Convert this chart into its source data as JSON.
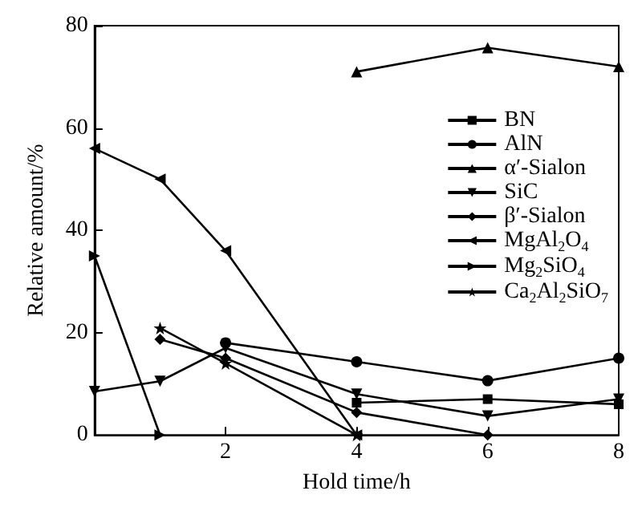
{
  "chart_data": {
    "type": "line",
    "xlabel": "Hold time/h",
    "ylabel": "Relative amount/%",
    "xlim": [
      0,
      8
    ],
    "xticks": [
      2,
      4,
      6,
      8
    ],
    "ylim": [
      0,
      80
    ],
    "yticks": [
      0,
      20,
      40,
      60,
      80
    ],
    "grid": false,
    "legend": "right",
    "line_style": "solid",
    "series": [
      {
        "name": "BN",
        "color": "#000000",
        "marker": "square",
        "x": [
          4,
          6,
          8
        ],
        "values": [
          6.3,
          7,
          6
        ]
      },
      {
        "name": "AlN",
        "color": "#000000",
        "marker": "circle",
        "x": [
          2,
          4,
          6,
          8
        ],
        "values": [
          18,
          14.3,
          10.6,
          15
        ]
      },
      {
        "name": "α′-Sialon",
        "color": "#000000",
        "marker": "triangle",
        "x": [
          4,
          6,
          8
        ],
        "values": [
          71,
          75.7,
          72
        ]
      },
      {
        "name": "SiC",
        "color": "#000000",
        "marker": "triangle-down",
        "x": [
          0,
          1,
          2,
          4,
          6,
          8
        ],
        "values": [
          8.5,
          10.5,
          17,
          8,
          3.7,
          7
        ]
      },
      {
        "name": "β′-Sialon",
        "color": "#000000",
        "marker": "diamond",
        "x": [
          1,
          2,
          4,
          6
        ],
        "values": [
          18.7,
          15,
          4.4,
          0
        ]
      },
      {
        "name": "MgAl$_{2}$O$_{4}$",
        "color": "#000000",
        "marker": "triangle-left",
        "x": [
          0,
          1,
          2,
          4
        ],
        "values": [
          56,
          50,
          36,
          0
        ]
      },
      {
        "name": "Mg$_{2}$SiO$_{4}$",
        "color": "#000000",
        "marker": "triangle-right",
        "x": [
          0,
          1
        ],
        "values": [
          35,
          0
        ]
      },
      {
        "name": "Ca$_{2}$Al$_{2}$SiO$_{7}$",
        "color": "#000000",
        "marker": "star",
        "x": [
          1,
          2,
          4
        ],
        "values": [
          20.9,
          14,
          0
        ]
      }
    ]
  }
}
